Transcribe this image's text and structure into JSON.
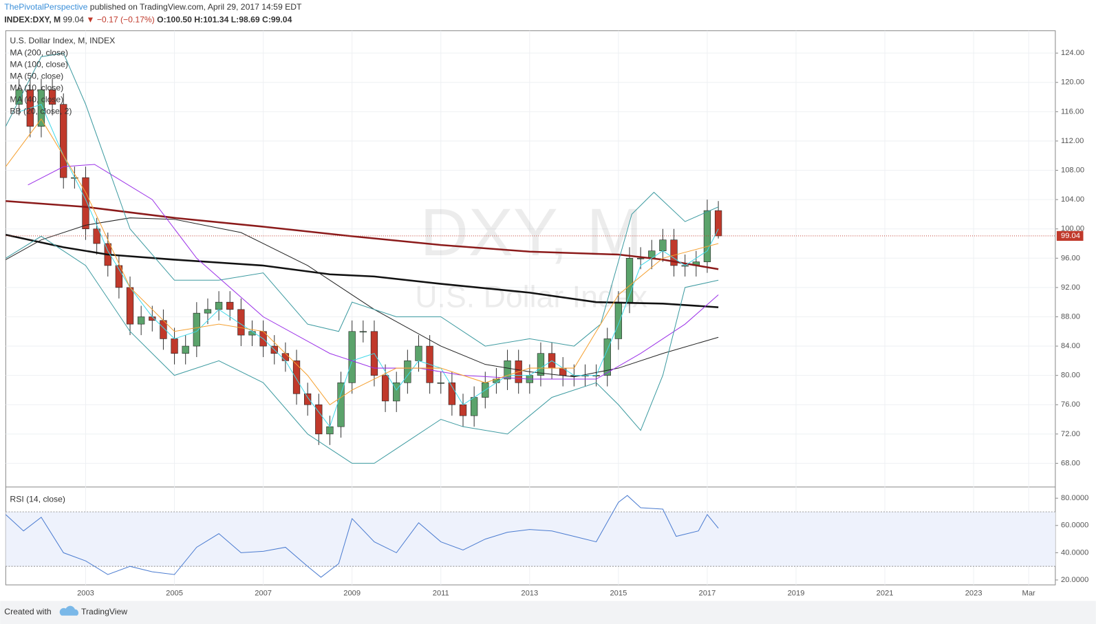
{
  "header": {
    "author": "ThePivotalPerspective",
    "published": "published on TradingView.com, April 29, 2017 14:59 EDT",
    "symbol": "INDEX:DXY, M",
    "last": "99.04",
    "change": "▼ −0.17 (−0.17%)",
    "ohlc": "O:100.50 H:101.34 L:98.69 C:99.04"
  },
  "footer": {
    "created": "Created with",
    "brand": "TradingView"
  },
  "chart_data": [
    {
      "type": "candlestick",
      "title": "U.S. Dollar Index, M, INDEX",
      "watermark": "DXY, M",
      "watermark_subtitle": "U.S. Dollar Index",
      "last_price": 99.04,
      "xlim": [
        2001.2,
        2024.84
      ],
      "xticks": [
        2003,
        2005,
        2007,
        2009,
        2011,
        2013,
        2015,
        2017,
        2019,
        2021,
        2023,
        {
          "value": 2024.24,
          "label": "Mar"
        }
      ],
      "ylim": [
        64.76,
        127.05
      ],
      "yticks": [
        {
          "value": 68,
          "label": "68.00"
        },
        {
          "value": 72,
          "label": "72.00"
        },
        {
          "value": 76,
          "label": "76.00"
        },
        {
          "value": 80,
          "label": "80.00"
        },
        {
          "value": 84,
          "label": "84.00"
        },
        {
          "value": 88,
          "label": "88.00"
        },
        {
          "value": 92,
          "label": "92.00"
        },
        {
          "value": 96,
          "label": "96.00"
        },
        {
          "value": 100,
          "label": "100.00"
        },
        {
          "value": 104,
          "label": "104.00"
        },
        {
          "value": 108,
          "label": "108.00"
        },
        {
          "value": 112,
          "label": "112.00"
        },
        {
          "value": 116,
          "label": "116.00"
        },
        {
          "value": 120,
          "label": "120.00"
        },
        {
          "value": 124,
          "label": "124.00"
        }
      ],
      "grid": true,
      "up_color": "#5ba36b",
      "down_color": "#c0392b",
      "x": [
        2001.5,
        2001.75,
        2002,
        2002.25,
        2002.5,
        2002.75,
        2003,
        2003.25,
        2003.5,
        2003.75,
        2004,
        2004.25,
        2004.5,
        2004.75,
        2005,
        2005.25,
        2005.5,
        2005.75,
        2006,
        2006.25,
        2006.5,
        2006.75,
        2007,
        2007.25,
        2007.5,
        2007.75,
        2008,
        2008.25,
        2008.5,
        2008.75,
        2009,
        2009.25,
        2009.5,
        2009.75,
        2010,
        2010.25,
        2010.5,
        2010.75,
        2011,
        2011.25,
        2011.5,
        2011.75,
        2012,
        2012.25,
        2012.5,
        2012.75,
        2013,
        2013.25,
        2013.5,
        2013.75,
        2014,
        2014.25,
        2014.5,
        2014.75,
        2015,
        2015.25,
        2015.5,
        2015.75,
        2016,
        2016.25,
        2016.5,
        2016.75,
        2017,
        2017.25
      ],
      "open": [
        117,
        119,
        114,
        119,
        117,
        107,
        107,
        100,
        98,
        95,
        92,
        87,
        88,
        87.5,
        85,
        83,
        84,
        88.5,
        89,
        90,
        89,
        85.5,
        86,
        84,
        83,
        82,
        77.5,
        76,
        72,
        73,
        79,
        86,
        86,
        80,
        76.5,
        79,
        82,
        84,
        79,
        79,
        76,
        74.5,
        77,
        79,
        79.5,
        82,
        79,
        80,
        83,
        81,
        80,
        80,
        80,
        80,
        85,
        90,
        96,
        96,
        97,
        98.5,
        95,
        95,
        95.5,
        102.5
      ],
      "high": [
        120.5,
        120.5,
        120.5,
        120.5,
        118.5,
        108.5,
        108.5,
        101.5,
        99.5,
        96.5,
        93.5,
        89.5,
        89.5,
        89,
        86.5,
        85.5,
        90,
        90.5,
        91.5,
        91.5,
        90.5,
        87.5,
        87.5,
        85.5,
        84.5,
        83.5,
        79,
        77.5,
        74.5,
        80.5,
        87.5,
        87.5,
        87.5,
        81.5,
        80.5,
        83.5,
        85.5,
        85.5,
        80.5,
        80.5,
        77.5,
        78.5,
        80.5,
        81,
        83.5,
        83.5,
        81.5,
        84.5,
        84.5,
        82.5,
        81.5,
        81.5,
        81.5,
        86.5,
        91.5,
        97.5,
        97.5,
        98.5,
        100,
        100,
        96.5,
        97,
        104,
        103.8
      ],
      "low": [
        115.5,
        112.5,
        112.5,
        115.5,
        105.5,
        105.5,
        98.5,
        96.5,
        93.5,
        90.5,
        85.5,
        85.5,
        86,
        83.5,
        81.5,
        81.5,
        82.5,
        87,
        87.5,
        87.5,
        84,
        84,
        82.5,
        81.5,
        80.5,
        76,
        74.5,
        70.5,
        70.5,
        71.5,
        77.5,
        84.5,
        78.5,
        75,
        75,
        77.5,
        80.5,
        77.5,
        77.5,
        74.5,
        73,
        73,
        75.5,
        77.5,
        78,
        77.5,
        77.5,
        78.5,
        79.5,
        78.5,
        78.5,
        78.5,
        78.5,
        78.5,
        83.5,
        88.5,
        94.5,
        94.5,
        95.5,
        93.5,
        93.5,
        93.5,
        94,
        98.69
      ],
      "close": [
        119,
        114,
        119,
        117,
        107,
        107,
        100,
        98,
        95,
        92,
        87,
        88,
        87.5,
        85,
        83,
        84,
        88.5,
        89,
        90,
        89,
        85.5,
        86,
        84,
        83,
        82,
        77.5,
        76,
        72,
        73,
        79,
        86,
        86,
        80,
        76.5,
        79,
        82,
        84,
        79,
        79,
        76,
        74.5,
        77,
        79,
        79.5,
        82,
        79,
        80,
        83,
        81,
        80,
        80,
        80,
        80,
        85,
        90,
        96,
        96,
        97,
        98.5,
        95,
        95,
        95.5,
        102.5,
        99.04
      ],
      "series": [
        {
          "name": "MA (200, close)",
          "color": "#8b1a1a",
          "width": 2.5,
          "x": [
            2001.2,
            2003,
            2005,
            2007,
            2009,
            2011,
            2013,
            2015,
            2016,
            2017.25
          ],
          "values": [
            103.8,
            103,
            101.5,
            100.3,
            99,
            97.8,
            96.9,
            96.5,
            95.8,
            94.5
          ]
        },
        {
          "name": "MA (100, close)",
          "color": "#111111",
          "width": 2.5,
          "x": [
            2001.2,
            2002.5,
            2003.5,
            2005,
            2007,
            2008.5,
            2009.5,
            2011,
            2013,
            2014.5,
            2016,
            2017.25
          ],
          "values": [
            99.2,
            97.5,
            96.5,
            95.8,
            95,
            93.8,
            93.5,
            92.5,
            91.3,
            90,
            89.8,
            89.3
          ]
        },
        {
          "name": "MA (50, close)",
          "color": "#222222",
          "width": 1,
          "x": [
            2001.2,
            2002,
            2003,
            2004,
            2005,
            2006.5,
            2008,
            2009.5,
            2011,
            2012,
            2013,
            2014,
            2015,
            2016,
            2017.25
          ],
          "values": [
            95.8,
            98.5,
            100.5,
            101.5,
            101.3,
            99.5,
            95,
            89,
            84,
            81.5,
            80.5,
            79.8,
            81,
            83,
            85.2
          ]
        },
        {
          "name": "MA (10, close)",
          "color": "#3fd8e8",
          "width": 1,
          "x": [
            2001.5,
            2002,
            2002.5,
            2003,
            2003.5,
            2004,
            2004.5,
            2005,
            2005.5,
            2006,
            2006.5,
            2007,
            2007.5,
            2008,
            2008.5,
            2009,
            2009.5,
            2010,
            2010.5,
            2011,
            2011.5,
            2012,
            2012.5,
            2013,
            2013.5,
            2014,
            2014.5,
            2015,
            2015.5,
            2016,
            2016.5,
            2017,
            2017.25
          ],
          "values": [
            116,
            117,
            110,
            104,
            97,
            92,
            88,
            85,
            86,
            89,
            87,
            85,
            82,
            77,
            73,
            82,
            83,
            78,
            82,
            81,
            76,
            78,
            80,
            80,
            82,
            80,
            80,
            87,
            95,
            97,
            95,
            97,
            100
          ]
        },
        {
          "name": "MA (40, close)",
          "color": "#9b30e8",
          "width": 1,
          "x": [
            2001.7,
            2002.5,
            2003.2,
            2004.5,
            2005.5,
            2007,
            2008.5,
            2009.5,
            2010.5,
            2011.5,
            2013,
            2014.5,
            2015.5,
            2016.5,
            2017.25
          ],
          "values": [
            106,
            108.5,
            108.8,
            104,
            96,
            88,
            83,
            81,
            81,
            80,
            79.5,
            79.5,
            83,
            87,
            91
          ]
        },
        {
          "name": "BB (20, close, 2)",
          "color": "#f5a030",
          "width": 1,
          "x": [
            2001.2,
            2002,
            2003,
            2004,
            2005,
            2006,
            2007,
            2008,
            2008.5,
            2009,
            2010,
            2011,
            2012,
            2013,
            2014,
            2015,
            2016,
            2017.25
          ],
          "values": [
            108.5,
            115,
            105,
            92,
            86,
            87,
            86,
            80,
            76,
            78,
            81,
            81,
            79,
            81,
            81,
            91,
            96,
            98
          ],
          "bands": {
            "color": "#3c9aa0",
            "upper": {
              "x": [
                2001.2,
                2002,
                2002.5,
                2003,
                2004,
                2005,
                2006,
                2007,
                2008,
                2008.7,
                2009,
                2010,
                2010.5,
                2011,
                2012,
                2013,
                2014,
                2014.6,
                2015.3,
                2015.8,
                2016.5,
                2017.25
              ],
              "values": [
                114,
                123.5,
                124,
                117,
                100,
                93,
                93,
                94,
                87,
                86,
                90,
                88,
                88,
                88,
                84,
                85,
                84,
                87,
                102,
                105,
                101,
                103
              ]
            },
            "lower": {
              "x": [
                2001.2,
                2002,
                2003,
                2004,
                2005,
                2006,
                2007,
                2008,
                2008.5,
                2009,
                2009.5,
                2010,
                2011,
                2011.5,
                2012.5,
                2013.5,
                2014.5,
                2015,
                2015.5,
                2016,
                2016.5,
                2017.25
              ],
              "values": [
                96,
                99,
                95,
                86,
                80,
                82,
                79,
                72,
                70,
                68,
                68,
                70,
                74,
                73,
                72,
                77,
                79,
                76,
                72.5,
                80,
                92,
                93
              ]
            }
          }
        }
      ]
    },
    {
      "type": "line",
      "title": "RSI (14, close)",
      "ylim": [
        16.4,
        88.2
      ],
      "yticks": [
        {
          "value": 20,
          "label": "20.0000"
        },
        {
          "value": 40,
          "label": "40.0000"
        },
        {
          "value": 60,
          "label": "60.0000"
        },
        {
          "value": 80,
          "label": "80.0000"
        }
      ],
      "band": [
        30,
        70
      ],
      "band_color": "#eef2fc",
      "series": [
        {
          "name": "RSI",
          "color": "#4a7bd0",
          "x": [
            2001.2,
            2001.6,
            2002,
            2002.5,
            2003,
            2003.5,
            2004,
            2004.5,
            2005,
            2005.5,
            2006,
            2006.5,
            2007,
            2007.5,
            2008,
            2008.3,
            2008.7,
            2009,
            2009.5,
            2010,
            2010.5,
            2011,
            2011.5,
            2012,
            2012.5,
            2013,
            2013.5,
            2014,
            2014.5,
            2015,
            2015.2,
            2015.5,
            2016,
            2016.3,
            2016.8,
            2017,
            2017.25
          ],
          "values": [
            68,
            56,
            66,
            40,
            34,
            24,
            30,
            26,
            24,
            44,
            54,
            40,
            41,
            44,
            30,
            22,
            32,
            65,
            48,
            40,
            62,
            48,
            42,
            50,
            55,
            57,
            56,
            52,
            48,
            77,
            82,
            73,
            72,
            52,
            56,
            68,
            58
          ]
        }
      ]
    }
  ]
}
